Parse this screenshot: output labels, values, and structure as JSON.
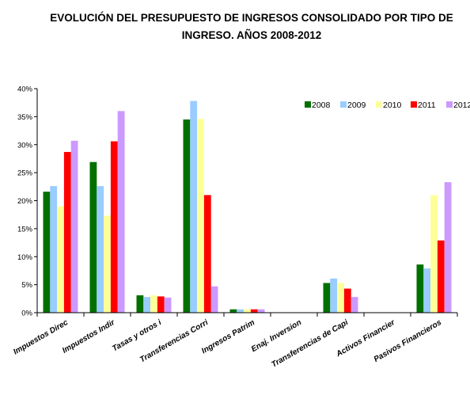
{
  "chart_data": {
    "type": "bar",
    "title_line1": "EVOLUCIÓN DEL PRESUPUESTO DE INGRESOS CONSOLIDADO POR TIPO DE",
    "title_line2": "INGRESO.  AÑOS  2008-2012",
    "categories": [
      "Impuestos Direc",
      "Impuestos Indir",
      "Tasas y otros i",
      "Transferencias Corri",
      "Ingresos Patrim",
      "Enaj. Inversion",
      "Transferencias de Capi",
      "Activos Financier",
      "Pasivos Financieros"
    ],
    "series": [
      {
        "name": "2008",
        "color": "#007000",
        "values": [
          21.6,
          26.9,
          3.1,
          34.5,
          0.6,
          0.0,
          5.3,
          0.0,
          8.6
        ]
      },
      {
        "name": "2009",
        "color": "#99ccff",
        "values": [
          22.6,
          22.6,
          2.8,
          37.8,
          0.6,
          0.0,
          6.1,
          0.0,
          7.9
        ]
      },
      {
        "name": "2010",
        "color": "#ffff99",
        "values": [
          19.0,
          17.3,
          3.1,
          34.6,
          0.6,
          0.0,
          5.3,
          0.0,
          21.0
        ]
      },
      {
        "name": "2011",
        "color": "#ff0000",
        "values": [
          28.7,
          30.6,
          2.9,
          21.0,
          0.6,
          0.0,
          4.3,
          0.0,
          12.9
        ]
      },
      {
        "name": "2012",
        "color": "#cc99ff",
        "values": [
          30.7,
          36.0,
          2.7,
          4.7,
          0.6,
          0.0,
          2.8,
          0.0,
          23.3
        ]
      }
    ],
    "yticks": [
      "0%",
      "5%",
      "10%",
      "15%",
      "20%",
      "25%",
      "30%",
      "35%",
      "40%"
    ],
    "ylim": [
      0,
      40
    ],
    "legend_position": "top-right",
    "grid": false
  }
}
